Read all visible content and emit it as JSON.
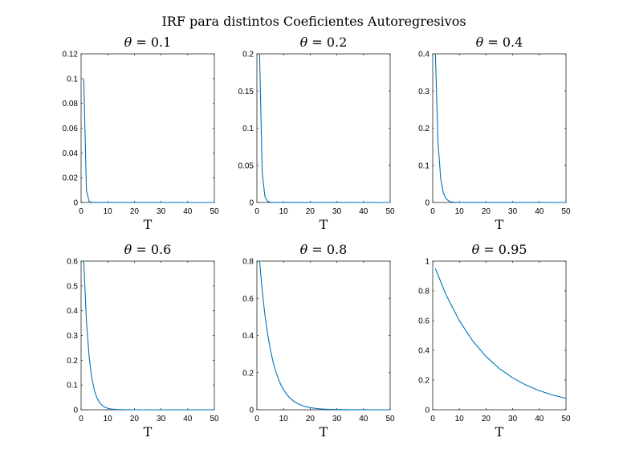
{
  "figure_title": "IRF para distintos Coeficientes Autoregresivos",
  "colors": {
    "line": "#0072bd",
    "axes": "#262626"
  },
  "chart_data": [
    {
      "type": "line",
      "title_symbol": "θ",
      "title_rest": " = 0.1",
      "xlabel": "T",
      "xlim": [
        0,
        50
      ],
      "ylim": [
        0,
        0.12
      ],
      "xticks": [
        0,
        10,
        20,
        30,
        40,
        50
      ],
      "yticks": [
        0,
        0.02,
        0.04,
        0.06,
        0.08,
        0.1,
        0.12
      ],
      "x": [
        1,
        2,
        3,
        4,
        5,
        50
      ],
      "y": [
        0.1,
        0.01,
        0.001,
        0.0001,
        1e-05,
        0
      ]
    },
    {
      "type": "line",
      "title_symbol": "θ",
      "title_rest": " = 0.2",
      "xlabel": "T",
      "xlim": [
        0,
        50
      ],
      "ylim": [
        0,
        0.2
      ],
      "xticks": [
        0,
        10,
        20,
        30,
        40,
        50
      ],
      "yticks": [
        0,
        0.05,
        0.1,
        0.15,
        0.2
      ],
      "x": [
        1,
        2,
        3,
        4,
        5,
        6,
        50
      ],
      "y": [
        0.2,
        0.04,
        0.008,
        0.0016,
        0.00032,
        6.4e-05,
        0
      ]
    },
    {
      "type": "line",
      "title_symbol": "θ",
      "title_rest": " = 0.4",
      "xlabel": "T",
      "xlim": [
        0,
        50
      ],
      "ylim": [
        0,
        0.4
      ],
      "xticks": [
        0,
        10,
        20,
        30,
        40,
        50
      ],
      "yticks": [
        0,
        0.1,
        0.2,
        0.3,
        0.4
      ],
      "x": [
        1,
        2,
        3,
        4,
        5,
        6,
        7,
        8,
        9,
        10,
        50
      ],
      "y": [
        0.4,
        0.16,
        0.064,
        0.0256,
        0.0102,
        0.0041,
        0.0016,
        0.0007,
        0.0003,
        0.0001,
        0
      ]
    },
    {
      "type": "line",
      "title_symbol": "θ",
      "title_rest": " = 0.6",
      "xlabel": "T",
      "xlim": [
        0,
        50
      ],
      "ylim": [
        0,
        0.6
      ],
      "xticks": [
        0,
        10,
        20,
        30,
        40,
        50
      ],
      "yticks": [
        0,
        0.1,
        0.2,
        0.3,
        0.4,
        0.5,
        0.6
      ],
      "x": [
        1,
        2,
        3,
        4,
        5,
        6,
        7,
        8,
        9,
        10,
        11,
        12,
        13,
        14,
        15,
        16,
        18,
        20,
        25,
        50
      ],
      "y": [
        0.6,
        0.36,
        0.216,
        0.1296,
        0.0778,
        0.0467,
        0.028,
        0.0168,
        0.0101,
        0.006,
        0.0036,
        0.0022,
        0.0013,
        0.0008,
        0.0005,
        0.0003,
        0.0001,
        4e-05,
        3e-06,
        0
      ]
    },
    {
      "type": "line",
      "title_symbol": "θ",
      "title_rest": " = 0.8",
      "xlabel": "T",
      "xlim": [
        0,
        50
      ],
      "ylim": [
        0,
        0.8
      ],
      "xticks": [
        0,
        10,
        20,
        30,
        40,
        50
      ],
      "yticks": [
        0,
        0.2,
        0.4,
        0.6,
        0.8
      ],
      "x": [
        1,
        2,
        3,
        4,
        5,
        6,
        7,
        8,
        9,
        10,
        12,
        14,
        16,
        18,
        20,
        22,
        24,
        26,
        28,
        30,
        35,
        40,
        45,
        50
      ],
      "y": [
        0.8,
        0.64,
        0.512,
        0.4096,
        0.3277,
        0.2621,
        0.2097,
        0.1678,
        0.1342,
        0.1074,
        0.0687,
        0.044,
        0.0281,
        0.018,
        0.0115,
        0.0074,
        0.0047,
        0.003,
        0.0019,
        0.0012,
        0.0004,
        0.0001,
        4e-05,
        1e-05
      ]
    },
    {
      "type": "line",
      "title_symbol": "θ",
      "title_rest": " = 0.95",
      "xlabel": "T",
      "xlim": [
        0,
        50
      ],
      "ylim": [
        0,
        1
      ],
      "xticks": [
        0,
        10,
        20,
        30,
        40,
        50
      ],
      "yticks": [
        0,
        0.2,
        0.4,
        0.6,
        0.8,
        1
      ],
      "x": [
        1,
        5,
        10,
        15,
        20,
        25,
        30,
        35,
        40,
        45,
        50
      ],
      "y": [
        0.95,
        0.7738,
        0.5987,
        0.4633,
        0.3585,
        0.2774,
        0.2146,
        0.1661,
        0.1285,
        0.0994,
        0.0769
      ]
    }
  ]
}
